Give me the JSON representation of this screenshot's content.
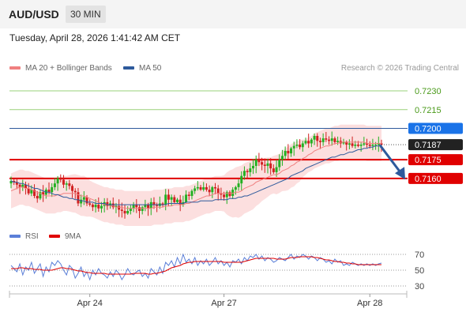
{
  "header": {
    "symbol": "AUD/USD",
    "timeframe": "30 MIN"
  },
  "datetime": "Tuesday, April 28, 2026 1:41:42 AM CET",
  "legend": {
    "ma20": {
      "label": "MA 20 + Bollinger Bands",
      "color": "#f08080"
    },
    "ma50": {
      "label": "MA 50",
      "color": "#2e5a9c"
    }
  },
  "credit": "Research © 2026 Trading Central",
  "rsi_legend": {
    "rsi": {
      "label": "RSI",
      "color": "#5b7fd8"
    },
    "ma": {
      "label": "9MA",
      "color": "#e00000"
    }
  },
  "chart_data": [
    {
      "type": "candlestick",
      "title": "",
      "x_ticks": [
        "Apr 24",
        "Apr 27",
        "Apr 28"
      ],
      "ylim": [
        0.7122,
        0.7242
      ],
      "levels": [
        {
          "label": "0.7230",
          "value": 0.723,
          "style": "green-line"
        },
        {
          "label": "0.7215",
          "value": 0.7215,
          "style": "green-line"
        },
        {
          "label": "0.7200",
          "value": 0.72,
          "style": "blue-tag"
        },
        {
          "label": "0.7187",
          "value": 0.7187,
          "style": "current-price"
        },
        {
          "label": "0.7175",
          "value": 0.7175,
          "style": "red-tag"
        },
        {
          "label": "0.7160",
          "value": 0.716,
          "style": "red-tag"
        }
      ],
      "forecast": {
        "from": 0.7187,
        "to": 0.7161,
        "direction": "down"
      },
      "colors": {
        "up": "#22b022",
        "down": "#d02020",
        "band": "#fbd4d4"
      },
      "close": [
        0.7158,
        0.7157,
        0.7155,
        0.7153,
        0.7155,
        0.7152,
        0.7148,
        0.7151,
        0.7146,
        0.7144,
        0.7149,
        0.7147,
        0.7151,
        0.7149,
        0.7153,
        0.7156,
        0.716,
        0.7159,
        0.7155,
        0.7156,
        0.7154,
        0.715,
        0.7149,
        0.714,
        0.7143,
        0.7145,
        0.714,
        0.7139,
        0.7137,
        0.7139,
        0.7136,
        0.7138,
        0.7141,
        0.7138,
        0.714,
        0.7137,
        0.7138,
        0.7135,
        0.7134,
        0.7132,
        0.7134,
        0.7136,
        0.7139,
        0.7137,
        0.7134,
        0.7137,
        0.7139,
        0.7136,
        0.7141,
        0.7139,
        0.7138,
        0.714,
        0.7139,
        0.7147,
        0.7143,
        0.7145,
        0.7141,
        0.7143,
        0.7139,
        0.7141,
        0.7147,
        0.7146,
        0.715,
        0.7152,
        0.7153,
        0.7151,
        0.7153,
        0.7151,
        0.7149,
        0.7153,
        0.7152,
        0.7148,
        0.7147,
        0.7145,
        0.7149,
        0.7146,
        0.7151,
        0.7153,
        0.7156,
        0.7162,
        0.7166,
        0.7165,
        0.7168,
        0.717,
        0.7175,
        0.7173,
        0.7171,
        0.717,
        0.7172,
        0.7168,
        0.7165,
        0.7169,
        0.7175,
        0.7178,
        0.7182,
        0.718,
        0.7184,
        0.7186,
        0.7187,
        0.7185,
        0.7188,
        0.719,
        0.7188,
        0.7191,
        0.7194,
        0.719,
        0.7189,
        0.7192,
        0.7191,
        0.719,
        0.7192,
        0.7189,
        0.719,
        0.7188,
        0.7189,
        0.7187,
        0.7188,
        0.7186,
        0.7187,
        0.7186,
        0.7187,
        0.7188,
        0.7187,
        0.7186,
        0.7187,
        0.7187,
        0.7188,
        0.7187
      ],
      "ma20": [
        0.715,
        0.7151,
        0.7152,
        0.7153,
        0.7153,
        0.7152,
        0.7152,
        0.7151,
        0.715,
        0.7149,
        0.7148,
        0.7147,
        0.7146,
        0.7146,
        0.7146,
        0.7146,
        0.7147,
        0.7147,
        0.7148,
        0.7148,
        0.7148,
        0.7148,
        0.7148,
        0.7147,
        0.7146,
        0.7146,
        0.7145,
        0.7144,
        0.7143,
        0.7142,
        0.7141,
        0.714,
        0.7139,
        0.7139,
        0.7138,
        0.7138,
        0.7137,
        0.7137,
        0.7137,
        0.7136,
        0.7136,
        0.7136,
        0.7136,
        0.7136,
        0.7136,
        0.7136,
        0.7136,
        0.7136,
        0.7136,
        0.7137,
        0.7137,
        0.7137,
        0.7137,
        0.7138,
        0.7138,
        0.7138,
        0.7139,
        0.7139,
        0.7139,
        0.7139,
        0.714,
        0.714,
        0.7141,
        0.7142,
        0.7143,
        0.7144,
        0.7145,
        0.7146,
        0.7146,
        0.7147,
        0.7148,
        0.7148,
        0.7148,
        0.7148,
        0.7148,
        0.7148,
        0.7148,
        0.7149,
        0.7149,
        0.715,
        0.7152,
        0.7153,
        0.7154,
        0.7155,
        0.7157,
        0.7158,
        0.7159,
        0.716,
        0.7161,
        0.7162,
        0.7163,
        0.7163,
        0.7164,
        0.7166,
        0.7167,
        0.7168,
        0.717,
        0.7171,
        0.7173,
        0.7174,
        0.7176,
        0.7177,
        0.7179,
        0.718,
        0.7182,
        0.7183,
        0.7184,
        0.7185,
        0.7186,
        0.7186,
        0.7187,
        0.7188,
        0.7188,
        0.7189,
        0.7189,
        0.7189,
        0.7189,
        0.7189,
        0.7189,
        0.7189,
        0.7189,
        0.7189,
        0.7188,
        0.7188,
        0.7188,
        0.7188,
        0.7188,
        0.7188
      ],
      "ma50": [
        0.7158,
        0.7157,
        0.7157,
        0.7156,
        0.7156,
        0.7155,
        0.7154,
        0.7153,
        0.7152,
        0.7152,
        0.7151,
        0.715,
        0.7149,
        0.7149,
        0.7148,
        0.7147,
        0.7147,
        0.7146,
        0.7145,
        0.7145,
        0.7144,
        0.7144,
        0.7143,
        0.7143,
        0.7142,
        0.7142,
        0.7141,
        0.7141,
        0.7141,
        0.714,
        0.714,
        0.714,
        0.714,
        0.7139,
        0.7139,
        0.7139,
        0.7139,
        0.7139,
        0.7139,
        0.7139,
        0.7139,
        0.7139,
        0.7139,
        0.7139,
        0.7139,
        0.7139,
        0.7139,
        0.7139,
        0.7139,
        0.7139,
        0.7139,
        0.7139,
        0.7139,
        0.7139,
        0.714,
        0.714,
        0.714,
        0.714,
        0.714,
        0.714,
        0.7141,
        0.7141,
        0.7141,
        0.7141,
        0.7141,
        0.7142,
        0.7142,
        0.7142,
        0.7142,
        0.7142,
        0.7143,
        0.7143,
        0.7143,
        0.7143,
        0.7143,
        0.7144,
        0.7144,
        0.7144,
        0.7145,
        0.7145,
        0.7146,
        0.7146,
        0.7147,
        0.7148,
        0.7149,
        0.715,
        0.7151,
        0.7152,
        0.7153,
        0.7154,
        0.7155,
        0.7156,
        0.7157,
        0.7158,
        0.7159,
        0.716,
        0.7162,
        0.7163,
        0.7164,
        0.7165,
        0.7166,
        0.7168,
        0.7169,
        0.717,
        0.7171,
        0.7172,
        0.7173,
        0.7174,
        0.7175,
        0.7176,
        0.7177,
        0.7177,
        0.7178,
        0.7179,
        0.7179,
        0.718,
        0.7181,
        0.7181,
        0.7182,
        0.7183,
        0.7183,
        0.7184,
        0.7184,
        0.7185,
        0.7185,
        0.7186,
        0.7186,
        0.7187
      ]
    },
    {
      "type": "line",
      "title": "",
      "ylim": [
        20,
        80
      ],
      "y_ticks": [
        "70",
        "50",
        "30"
      ],
      "series": [
        {
          "name": "RSI",
          "color": "#5b7fd8",
          "values": [
            56,
            52,
            48,
            58,
            44,
            54,
            50,
            60,
            46,
            52,
            58,
            42,
            54,
            48,
            60,
            56,
            62,
            58,
            50,
            44,
            56,
            52,
            40,
            46,
            54,
            42,
            48,
            38,
            50,
            44,
            52,
            46,
            44,
            40,
            48,
            42,
            50,
            46,
            38,
            44,
            52,
            46,
            44,
            48,
            50,
            42,
            46,
            40,
            52,
            48,
            44,
            54,
            46,
            60,
            56,
            62,
            54,
            66,
            58,
            70,
            60,
            64,
            58,
            66,
            56,
            62,
            58,
            64,
            56,
            60,
            66,
            58,
            62,
            56,
            60,
            54,
            62,
            60,
            64,
            58,
            66,
            62,
            68,
            66,
            70,
            64,
            68,
            62,
            66,
            64,
            60,
            62,
            66,
            64,
            62,
            66,
            70,
            64,
            68,
            66,
            70,
            68,
            64,
            68,
            66,
            62,
            66,
            64,
            60,
            62,
            58,
            64,
            60,
            62,
            56,
            58,
            56,
            60,
            58,
            56,
            58,
            56,
            58,
            56,
            58,
            56,
            58,
            59
          ]
        },
        {
          "name": "9MA",
          "color": "#e00000",
          "values": [
            52,
            52,
            52,
            53,
            53,
            52,
            52,
            52,
            51,
            51,
            51,
            50,
            50,
            50,
            50,
            51,
            52,
            53,
            53,
            52,
            52,
            51,
            50,
            49,
            49,
            48,
            47,
            47,
            46,
            46,
            46,
            46,
            46,
            45,
            45,
            45,
            45,
            45,
            45,
            45,
            45,
            45,
            46,
            46,
            46,
            46,
            46,
            45,
            45,
            46,
            46,
            47,
            48,
            49,
            51,
            53,
            54,
            55,
            56,
            58,
            59,
            60,
            60,
            61,
            61,
            61,
            61,
            61,
            61,
            61,
            61,
            61,
            61,
            60,
            60,
            60,
            60,
            60,
            60,
            60,
            61,
            62,
            63,
            64,
            65,
            65,
            65,
            65,
            65,
            65,
            65,
            64,
            64,
            64,
            64,
            65,
            66,
            66,
            66,
            67,
            67,
            67,
            67,
            67,
            66,
            66,
            65,
            64,
            63,
            63,
            62,
            61,
            61,
            60,
            60,
            59,
            59,
            58,
            58,
            57,
            57,
            57,
            57,
            57,
            57,
            57,
            57,
            57
          ]
        }
      ]
    }
  ]
}
